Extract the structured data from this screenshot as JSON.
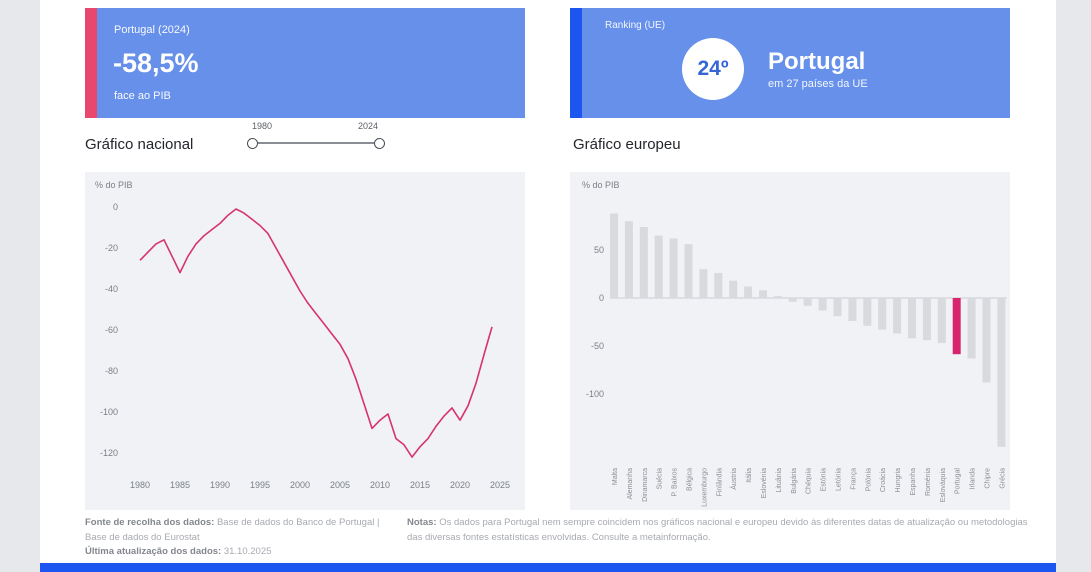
{
  "kpi_card": {
    "title": "Portugal (2024)",
    "value": "-58,5%",
    "subtitle": "face ao PIB",
    "accent_color": "#ea476f"
  },
  "ranking_card": {
    "title": "Ranking (UE)",
    "rank": "24º",
    "country": "Portugal",
    "subtitle": "em 27 países da UE",
    "accent_color": "#1d55f0"
  },
  "sections": {
    "national": "Gráfico nacional",
    "european": "Gráfico europeu"
  },
  "slider": {
    "min_label": "1980",
    "max_label": "2024"
  },
  "chart_data": [
    {
      "type": "line",
      "title": "Gráfico nacional",
      "series_name": "Portugal",
      "ylabel": "% do PIB",
      "x_range": [
        1980,
        2024
      ],
      "values": [
        -26,
        -22,
        -18,
        -16,
        -24,
        -32,
        -24,
        -18,
        -14,
        -11,
        -8,
        -4,
        -1,
        -3,
        -6,
        -9,
        -13,
        -20,
        -27,
        -34,
        -41,
        -47,
        -52,
        -57,
        -62,
        -67,
        -74,
        -84,
        -96,
        -108,
        -104,
        -101,
        -113,
        -116,
        -122,
        -117,
        -113,
        -107,
        -102,
        -98,
        -104,
        -97,
        -86,
        -72,
        -58.5
      ],
      "xticks": [
        1980,
        1985,
        1990,
        1995,
        2000,
        2005,
        2010,
        2015,
        2020,
        2025
      ],
      "yticks": [
        0,
        -20,
        -40,
        -60,
        -80,
        -100,
        -120
      ],
      "ylim": [
        -130,
        5
      ],
      "grid": false,
      "line_color": "#d6336f"
    },
    {
      "type": "bar",
      "title": "Gráfico europeu",
      "ylabel": "% do PIB",
      "categories": [
        "Malta",
        "Alemanha",
        "Dinamarca",
        "Suécia",
        "P. Baixos",
        "Bélgica",
        "Luxemburgo",
        "Finlândia",
        "Áustria",
        "Itália",
        "Eslovénia",
        "Lituânia",
        "Bulgária",
        "Chéquia",
        "Estónia",
        "Letónia",
        "França",
        "Polónia",
        "Croácia",
        "Hungria",
        "Espanha",
        "Roménia",
        "Eslováquia",
        "Portugal",
        "Irlanda",
        "Chipre",
        "Grécia"
      ],
      "values": [
        88,
        80,
        74,
        65,
        62,
        56,
        30,
        26,
        18,
        12,
        8,
        2,
        -4,
        -8,
        -13,
        -19,
        -24,
        -29,
        -33,
        -37,
        -42,
        -44,
        -47,
        -58.5,
        -63,
        -88,
        -155
      ],
      "yticks": [
        50,
        0,
        -50,
        -100
      ],
      "ylim": [
        -170,
        95
      ],
      "grid": false,
      "bar_color": "#d8dade",
      "highlight_category": "Portugal",
      "highlight_color": "#d6246e"
    }
  ],
  "footer": {
    "source_label": "Fonte de recolha dos dados:",
    "source_text": "Base de dados do Banco de Portugal | Base de dados do Eurostat",
    "updated_label": "Última atualização dos dados:",
    "updated_text": "31.10.2025",
    "notes_label": "Notas:",
    "notes_text": "Os dados para Portugal nem sempre coincidem nos gráficos nacional e europeu devido às diferentes datas de atualização ou metodologias das diversas fontes estatísticas envolvidas. Consulte a metainformação."
  },
  "colors": {
    "card_blue": "#6690e9",
    "pink_accent": "#ea476f",
    "bright_blue": "#1d55f0",
    "chart_bg": "#f1f2f5"
  }
}
